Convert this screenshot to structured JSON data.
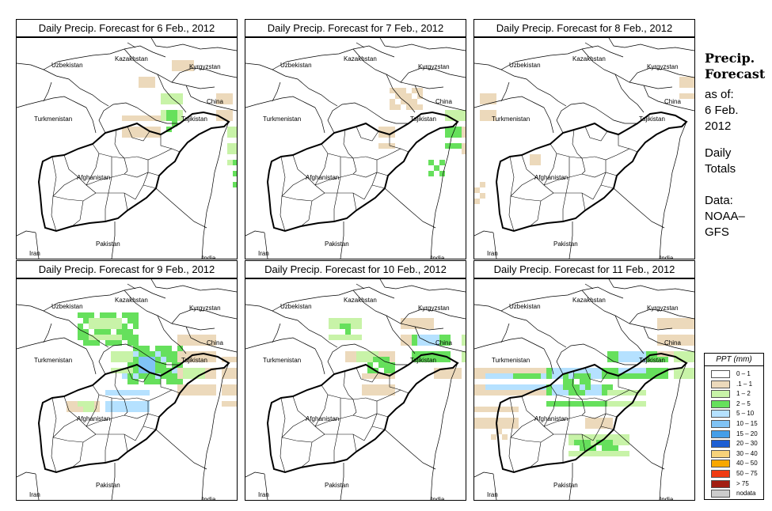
{
  "panels": [
    {
      "title": "Daily Precip. Forecast for  6 Feb., 2012"
    },
    {
      "title": "Daily Precip. Forecast for  7 Feb., 2012"
    },
    {
      "title": "Daily Precip. Forecast for  8 Feb., 2012"
    },
    {
      "title": "Daily Precip. Forecast for  9 Feb., 2012"
    },
    {
      "title": "Daily Precip. Forecast for  10 Feb., 2012"
    },
    {
      "title": "Daily Precip. Forecast for  11 Feb., 2012"
    }
  ],
  "map_labels": {
    "uzbekistan": "Uzbekistan",
    "kazakhstan": "Kazakhstan",
    "kyrgyzstan": "Kyrgyzstan",
    "china": "China",
    "tajikistan": "Tajikistan",
    "turkmenistan": "Turkmenistan",
    "afghanistan": "Afghanistan",
    "pakistan": "Pakistan",
    "iran": "Iran",
    "india": "India"
  },
  "sidebar": {
    "title_line1": "Precip.",
    "title_line2": "Forecast",
    "as_of_label": "as of:",
    "date_line1": "6 Feb.",
    "date_line2": "2012",
    "totals_line1": "Daily",
    "totals_line2": "Totals",
    "data_label": "Data:",
    "source_line1": "NOAA–",
    "source_line2": "GFS"
  },
  "legend": {
    "title": "PPT (mm)",
    "items": [
      {
        "label": "0 – 1",
        "color": "#ffffff"
      },
      {
        "label": ".1 – 1",
        "color": "#ecd9bb"
      },
      {
        "label": "1 – 2",
        "color": "#c8f3a8"
      },
      {
        "label": "2 – 5",
        "color": "#66e05c"
      },
      {
        "label": "5 – 10",
        "color": "#b5e1ff"
      },
      {
        "label": "10 – 15",
        "color": "#80c3f5"
      },
      {
        "label": "15 – 20",
        "color": "#459ee8"
      },
      {
        "label": "20 – 30",
        "color": "#1e5fd3"
      },
      {
        "label": "30 – 40",
        "color": "#f7d27a"
      },
      {
        "label": "40 – 50",
        "color": "#f8a800"
      },
      {
        "label": "50 – 75",
        "color": "#ef3b12"
      },
      {
        "label": "> 75",
        "color": "#a21e12"
      },
      {
        "label": "nodata",
        "color": "#cccccc"
      }
    ]
  }
}
